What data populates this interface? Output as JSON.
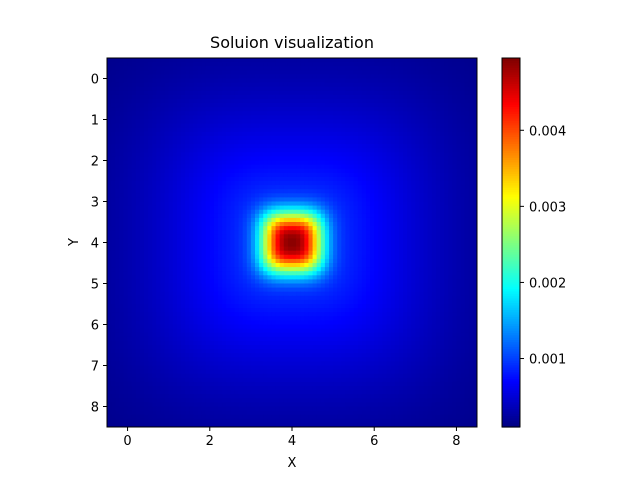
{
  "chart_data": {
    "type": "heatmap",
    "title": "Soluion visualization",
    "xlabel": "X",
    "ylabel": "Y",
    "grid": false,
    "colormap": "jet",
    "x_ticks": [
      "0",
      "2",
      "4",
      "6",
      "8"
    ],
    "y_ticks": [
      "0",
      "1",
      "2",
      "3",
      "4",
      "5",
      "6",
      "7",
      "8"
    ],
    "xlim": [
      -0.5,
      8.5
    ],
    "ylim": [
      8.5,
      -0.5
    ],
    "y_inverted": true,
    "peak": {
      "x": 4,
      "y": 4,
      "value": 0.0049
    },
    "colorbar": {
      "vmin": 0.0001,
      "vmax": 0.00495,
      "ticks": [
        0.001,
        0.002,
        0.003,
        0.004
      ],
      "tick_labels": [
        "0.001",
        "0.002",
        "0.003",
        "0.004"
      ]
    }
  }
}
